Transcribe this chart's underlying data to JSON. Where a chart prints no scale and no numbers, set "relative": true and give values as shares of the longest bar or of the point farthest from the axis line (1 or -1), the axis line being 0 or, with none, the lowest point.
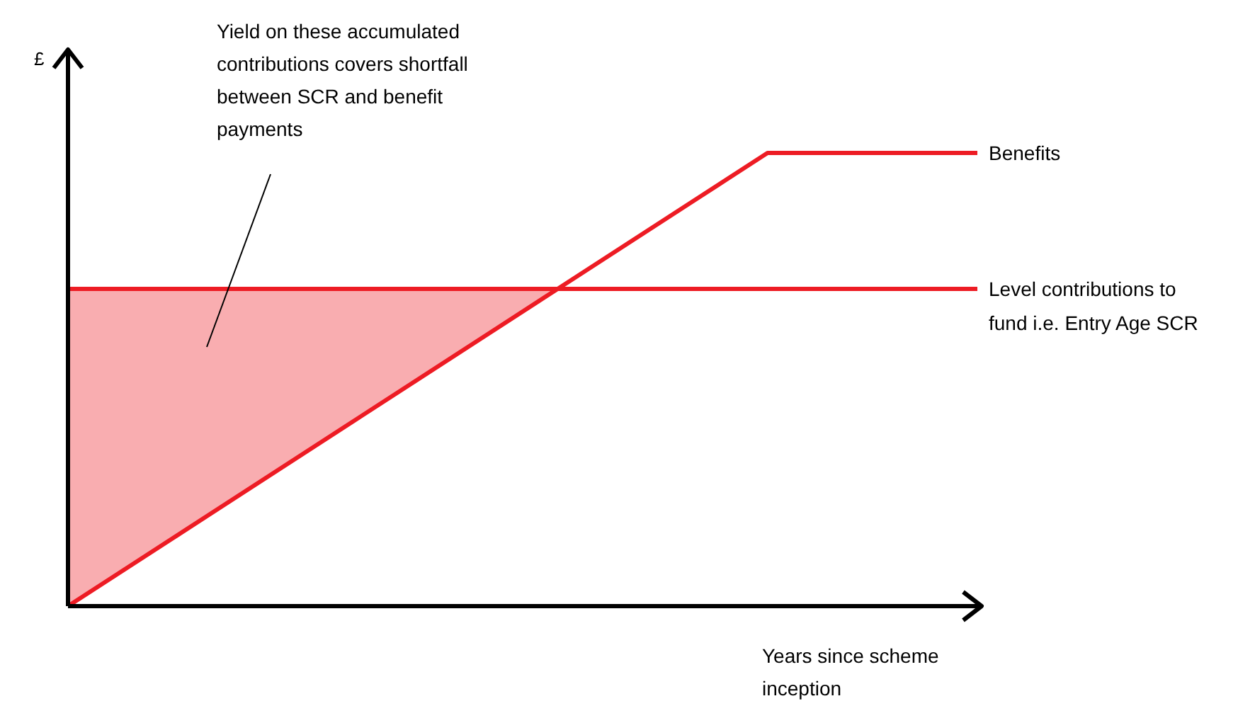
{
  "chart_data": {
    "type": "line",
    "relative": true,
    "ylabel": "£",
    "xlabel": "Years since scheme inception",
    "legend": false,
    "marker": "none",
    "line_style": "solid",
    "categories": [
      null,
      null,
      null,
      null,
      null,
      null,
      null,
      null,
      null,
      null,
      null,
      null,
      null,
      null
    ],
    "series": [
      {
        "name": "Benefits",
        "color": "#ed1c24",
        "values": [
          0,
          0.1,
          0.2,
          0.3,
          0.4,
          0.5,
          0.6,
          0.7,
          0.8,
          0.9,
          1,
          1,
          1,
          1
        ]
      },
      {
        "name": "Level contributions to fund i.e. Entry Age SCR",
        "color": "#ed1c24",
        "values": [
          0.7,
          0.7,
          0.7,
          0.7,
          0.7,
          0.7,
          0.7,
          0.7,
          0.7,
          0.7,
          0.7,
          0.7,
          0.7,
          0.7
        ],
        "lower": [
          0,
          0.1,
          0.2,
          0.3,
          0.4,
          0.5,
          0.6,
          0.7,
          null,
          null,
          null,
          null,
          null,
          null
        ],
        "upper": [
          0.7,
          0.7,
          0.7,
          0.7,
          0.7,
          0.7,
          0.7,
          0.7,
          null,
          null,
          null,
          null,
          null,
          null
        ]
      }
    ],
    "annotations": [
      "Yield on these accumulated contributions covers shortfall between SCR and benefit payments"
    ]
  }
}
